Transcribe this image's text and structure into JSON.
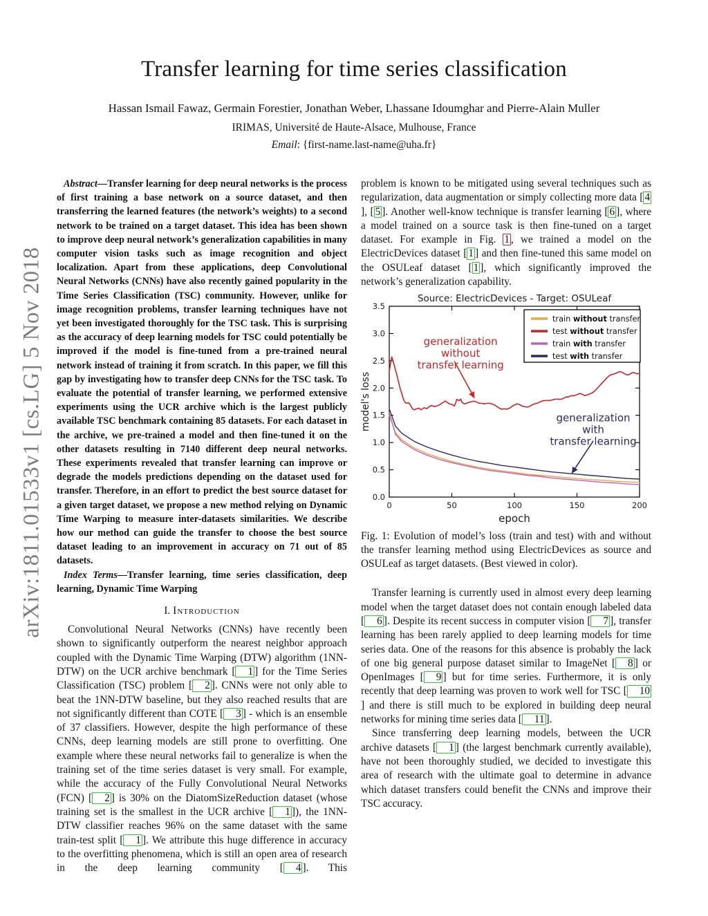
{
  "arxiv_sidebar": "arXiv:1811.01533v1  [cs.LG]  5 Nov 2018",
  "header": {
    "title": "Transfer learning for time series classification",
    "authors": "Hassan Ismail Fawaz, Germain Forestier, Jonathan Weber, Lhassane Idoumghar and Pierre-Alain Muller",
    "affiliation": "IRIMAS, Université de Haute-Alsace, Mulhouse, France",
    "email_label": "Email",
    "email_value": ": {first-name.last-name@uha.fr}"
  },
  "abstract": {
    "label": "Abstract—",
    "text": "Transfer learning for deep neural networks is the process of first training a base network on a source dataset, and then transferring the learned features (the network’s weights) to a second network to be trained on a target dataset. This idea has been shown to improve deep neural network’s generalization capabilities in many computer vision tasks such as image recognition and object localization. Apart from these applications, deep Convolutional Neural Networks (CNNs) have also recently gained popularity in the Time Series Classification (TSC) community. However, unlike for image recognition problems, transfer learning techniques have not yet been investigated thoroughly for the TSC task. This is surprising as the accuracy of deep learning models for TSC could potentially be improved if the model is fine-tuned from a pre-trained neural network instead of training it from scratch. In this paper, we fill this gap by investigating how to transfer deep CNNs for the TSC task. To evaluate the potential of transfer learning, we performed extensive experiments using the UCR archive which is the largest publicly available TSC benchmark containing 85 datasets. For each dataset in the archive, we pre-trained a model and then fine-tuned it on the other datasets resulting in 7140 different deep neural networks. These experiments revealed that transfer learning can improve or degrade the models predictions depending on the dataset used for transfer. Therefore, in an effort to predict the best source dataset for a given target dataset, we propose a new method relying on Dynamic Time Warping to measure inter-datasets similarities. We describe how our method can guide the transfer to choose the best source dataset leading to an improvement in accuracy on 71 out of 85 datasets."
  },
  "index_terms": {
    "label": "Index Terms—",
    "text": "Transfer learning, time series classification, deep learning, Dynamic Time Warping"
  },
  "sections": {
    "intro_number": "I.",
    "intro_title": "Introduction"
  },
  "paragraphs": {
    "intro_p1": "Convolutional Neural Networks (CNNs) have recently been shown to significantly outperform the nearest neighbor approach coupled with the Dynamic Time Warping (DTW) algorithm (1NN-DTW) on the UCR archive benchmark [1] for the Time Series Classification (TSC) problem [2]. CNNs were not only able to beat the 1NN-DTW baseline, but they also reached results that are not significantly different than COTE [3] - which is an ensemble of 37 classifiers. However, despite the high performance of these CNNs, deep learning models are still prone to overfitting. One example where these neural networks fail to generalize is when the training set of the time series dataset is very small. For example, while the accuracy of the Fully Convolutional Neural Networks (FCN) [2] is 30% on the DiatomSizeReduction dataset (whose training set is the smallest in the UCR archive [1]), the 1NN-DTW classifier reaches 96% on the same dataset with the same train-test split [1]. We attribute this huge difference in accuracy to the overfitting phenomena, which is still an open area of research in the deep learning community [4]. This",
    "col2_p1": "problem is known to be mitigated using several techniques such as regularization, data augmentation or simply collecting more data [4], [5]. Another well-know technique is transfer learning [6], where a model trained on a source task is then fine-tuned on a target dataset. For example in Fig. {1}, we trained a model on the ElectricDevices dataset [1] and then fine-tuned this same model on the OSULeaf dataset [1], which significantly improved the network’s generalization capability.",
    "col2_p2": "Transfer learning is currently used in almost every deep learning model when the target dataset does not contain enough labeled data [6]. Despite its recent success in computer vision [7], transfer learning has been rarely applied to deep learning models for time series data. One of the reasons for this absence is probably the lack of one big general purpose dataset similar to ImageNet [8] or OpenImages [9] but for time series. Furthermore, it is only recently that deep learning was proven to work well for TSC [10] and there is still much to be explored in building deep neural networks for mining time series data [11].",
    "col2_p3": "Since transferring deep learning models, between the UCR archive datasets [1] (the largest benchmark currently available), have not been thoroughly studied, we decided to investigate this area of research with the ultimate goal to determine in advance which dataset transfers could benefit the CNNs and improve their TSC accuracy."
  },
  "figure": {
    "caption": "Fig. 1: Evolution of model’s loss (train and test) with and without the transfer learning method using ElectricDevices as source and OSULeaf as target datasets. (Best viewed in color)."
  },
  "chart_data": {
    "type": "line",
    "title": "Source: ElectricDevices - Target: OSULeaf",
    "xlabel": "epoch",
    "ylabel": "model's loss",
    "xlim": [
      0,
      200
    ],
    "ylim": [
      0,
      3.5
    ],
    "xticks": [
      0,
      50,
      100,
      150,
      200
    ],
    "yticks": [
      0.0,
      0.5,
      1.0,
      1.5,
      2.0,
      2.5,
      3.0,
      3.5
    ],
    "grid": false,
    "legend_position": "upper right",
    "series": [
      {
        "name": "train **without** transfer",
        "color": "#f2a33c",
        "points": [
          [
            0,
            1.5
          ],
          [
            5,
            1.18
          ],
          [
            10,
            1.05
          ],
          [
            20,
            0.9
          ],
          [
            30,
            0.8
          ],
          [
            40,
            0.72
          ],
          [
            50,
            0.65
          ],
          [
            60,
            0.6
          ],
          [
            70,
            0.55
          ],
          [
            80,
            0.51
          ],
          [
            90,
            0.48
          ],
          [
            100,
            0.45
          ],
          [
            110,
            0.42
          ],
          [
            120,
            0.4
          ],
          [
            130,
            0.38
          ],
          [
            140,
            0.36
          ],
          [
            150,
            0.34
          ],
          [
            160,
            0.32
          ],
          [
            170,
            0.31
          ],
          [
            180,
            0.29
          ],
          [
            190,
            0.28
          ],
          [
            200,
            0.27
          ]
        ]
      },
      {
        "name": "test **without** transfer",
        "color": "#cf2222",
        "points": [
          [
            0,
            2.3
          ],
          [
            1,
            2.45
          ],
          [
            2,
            2.57
          ],
          [
            3,
            2.5
          ],
          [
            4,
            2.42
          ],
          [
            5,
            2.33
          ],
          [
            6,
            2.25
          ],
          [
            7,
            2.15
          ],
          [
            8,
            2.05
          ],
          [
            9,
            1.97
          ],
          [
            10,
            1.9
          ],
          [
            11,
            1.82
          ],
          [
            12,
            1.76
          ],
          [
            13,
            1.73
          ],
          [
            14,
            1.72
          ],
          [
            15,
            1.73
          ],
          [
            16,
            1.72
          ],
          [
            17,
            1.68
          ],
          [
            18,
            1.64
          ],
          [
            19,
            1.61
          ],
          [
            20,
            1.6
          ],
          [
            22,
            1.62
          ],
          [
            24,
            1.63
          ],
          [
            25,
            1.6
          ],
          [
            26,
            1.61
          ],
          [
            28,
            1.64
          ],
          [
            30,
            1.62
          ],
          [
            32,
            1.66
          ],
          [
            34,
            1.68
          ],
          [
            36,
            1.66
          ],
          [
            38,
            1.67
          ],
          [
            40,
            1.69
          ],
          [
            42,
            1.72
          ],
          [
            44,
            1.75
          ],
          [
            45,
            1.76
          ],
          [
            46,
            1.74
          ],
          [
            48,
            1.71
          ],
          [
            50,
            1.7
          ],
          [
            52,
            1.67
          ],
          [
            53,
            1.72
          ],
          [
            54,
            1.79
          ],
          [
            56,
            1.77
          ],
          [
            57,
            1.8
          ],
          [
            58,
            1.74
          ],
          [
            60,
            1.71
          ],
          [
            62,
            1.72
          ],
          [
            64,
            1.74
          ],
          [
            66,
            1.75
          ],
          [
            68,
            1.76
          ],
          [
            70,
            1.74
          ],
          [
            72,
            1.72
          ],
          [
            74,
            1.72
          ],
          [
            76,
            1.71
          ],
          [
            78,
            1.72
          ],
          [
            80,
            1.72
          ],
          [
            82,
            1.71
          ],
          [
            84,
            1.69
          ],
          [
            86,
            1.66
          ],
          [
            88,
            1.63
          ],
          [
            90,
            1.61
          ],
          [
            92,
            1.62
          ],
          [
            94,
            1.61
          ],
          [
            96,
            1.63
          ],
          [
            98,
            1.66
          ],
          [
            100,
            1.69
          ],
          [
            102,
            1.71
          ],
          [
            104,
            1.7
          ],
          [
            106,
            1.67
          ],
          [
            108,
            1.66
          ],
          [
            110,
            1.65
          ],
          [
            112,
            1.66
          ],
          [
            114,
            1.69
          ],
          [
            116,
            1.71
          ],
          [
            118,
            1.72
          ],
          [
            120,
            1.74
          ],
          [
            122,
            1.76
          ],
          [
            124,
            1.77
          ],
          [
            126,
            1.77
          ],
          [
            128,
            1.77
          ],
          [
            130,
            1.78
          ],
          [
            132,
            1.79
          ],
          [
            134,
            1.8
          ],
          [
            136,
            1.79
          ],
          [
            138,
            1.8
          ],
          [
            140,
            1.82
          ],
          [
            142,
            1.84
          ],
          [
            143,
            1.83
          ],
          [
            144,
            1.85
          ],
          [
            146,
            1.86
          ],
          [
            148,
            1.86
          ],
          [
            150,
            1.88
          ],
          [
            152,
            1.9
          ],
          [
            154,
            1.89
          ],
          [
            156,
            1.86
          ],
          [
            158,
            1.87
          ],
          [
            160,
            1.89
          ],
          [
            162,
            1.91
          ],
          [
            164,
            1.94
          ],
          [
            166,
            1.99
          ],
          [
            168,
            2.04
          ],
          [
            170,
            2.09
          ],
          [
            172,
            2.14
          ],
          [
            174,
            2.19
          ],
          [
            176,
            2.23
          ],
          [
            178,
            2.25
          ],
          [
            180,
            2.26
          ],
          [
            182,
            2.28
          ],
          [
            184,
            2.3
          ],
          [
            186,
            2.29
          ],
          [
            188,
            2.26
          ],
          [
            190,
            2.24
          ],
          [
            192,
            2.25
          ],
          [
            194,
            2.28
          ],
          [
            196,
            2.28
          ],
          [
            198,
            2.26
          ],
          [
            200,
            2.27
          ]
        ]
      },
      {
        "name": "train **with** transfer",
        "color": "#c160c1",
        "points": [
          [
            0,
            1.55
          ],
          [
            5,
            1.15
          ],
          [
            10,
            1.02
          ],
          [
            20,
            0.87
          ],
          [
            30,
            0.77
          ],
          [
            40,
            0.69
          ],
          [
            50,
            0.63
          ],
          [
            60,
            0.58
          ],
          [
            70,
            0.53
          ],
          [
            80,
            0.49
          ],
          [
            90,
            0.46
          ],
          [
            100,
            0.43
          ],
          [
            110,
            0.4
          ],
          [
            120,
            0.38
          ],
          [
            130,
            0.35
          ],
          [
            140,
            0.33
          ],
          [
            150,
            0.31
          ],
          [
            160,
            0.29
          ],
          [
            170,
            0.27
          ],
          [
            180,
            0.26
          ],
          [
            190,
            0.24
          ],
          [
            200,
            0.23
          ]
        ]
      },
      {
        "name": "test **with** transfer",
        "color": "#2b2b62",
        "points": [
          [
            0,
            1.62
          ],
          [
            5,
            1.3
          ],
          [
            10,
            1.17
          ],
          [
            20,
            1.02
          ],
          [
            30,
            0.92
          ],
          [
            40,
            0.84
          ],
          [
            50,
            0.77
          ],
          [
            60,
            0.71
          ],
          [
            70,
            0.66
          ],
          [
            80,
            0.62
          ],
          [
            90,
            0.58
          ],
          [
            100,
            0.55
          ],
          [
            110,
            0.52
          ],
          [
            120,
            0.49
          ],
          [
            130,
            0.46
          ],
          [
            140,
            0.44
          ],
          [
            150,
            0.42
          ],
          [
            160,
            0.4
          ],
          [
            170,
            0.38
          ],
          [
            180,
            0.36
          ],
          [
            190,
            0.34
          ],
          [
            200,
            0.33
          ]
        ]
      }
    ],
    "annotations": [
      {
        "lines": [
          "generalization",
          "without",
          "transfer learning"
        ],
        "color": "#cf2222",
        "x": 57,
        "y": 2.79,
        "arrow": {
          "x1": 52,
          "y1": 2.49,
          "x2": 68,
          "y2": 1.82
        }
      },
      {
        "lines": [
          "generalization",
          "with",
          "transfer learning"
        ],
        "color": "#2b2b62",
        "x": 163,
        "y": 1.39,
        "arrow": {
          "x1": 163,
          "y1": 1.03,
          "x2": 146,
          "y2": 0.44
        }
      }
    ]
  }
}
